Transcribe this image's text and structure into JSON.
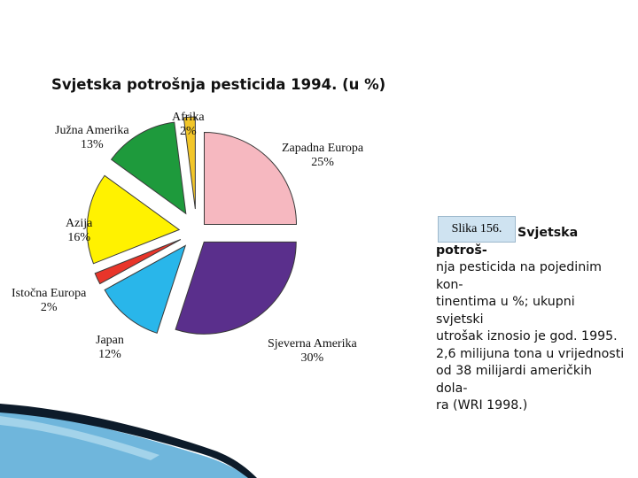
{
  "chart_data": {
    "type": "pie",
    "title": "Svjetska potrošnja pesticida 1994. (u %)",
    "slices": [
      {
        "label": "Zapadna Europa",
        "value": 25,
        "value_label": "25%",
        "color": "#f6b8c0"
      },
      {
        "label": "Sjeverna Amerika",
        "value": 30,
        "value_label": "30%",
        "color": "#5a2f8c"
      },
      {
        "label": "Japan",
        "value": 12,
        "value_label": "12%",
        "color": "#29b6ea"
      },
      {
        "label": "Istočna Europa",
        "value": 2,
        "value_label": "2%",
        "color": "#e8352a"
      },
      {
        "label": "Azija",
        "value": 16,
        "value_label": "16%",
        "color": "#fff200"
      },
      {
        "label": "Južna Amerika",
        "value": 13,
        "value_label": "13%",
        "color": "#1e9a3c"
      },
      {
        "label": "Afrika",
        "value": 2,
        "value_label": "2%",
        "color": "#f2c629"
      }
    ]
  },
  "caption": {
    "label": "Slika 156.",
    "lines": [
      "Svjetska potroš-",
      "nja pesticida na pojedinim kon-",
      "tinentima u %; ukupni svjetski",
      "utrošak iznosio je god. 1995.",
      "2,6 milijuna tona u vrijednosti",
      "od 38 milijardi američkih dola-",
      "ra (WRI 1998.)"
    ]
  },
  "colors": {
    "decor_dark": "#0d1b2a",
    "decor_light": "#6fb6dc"
  }
}
